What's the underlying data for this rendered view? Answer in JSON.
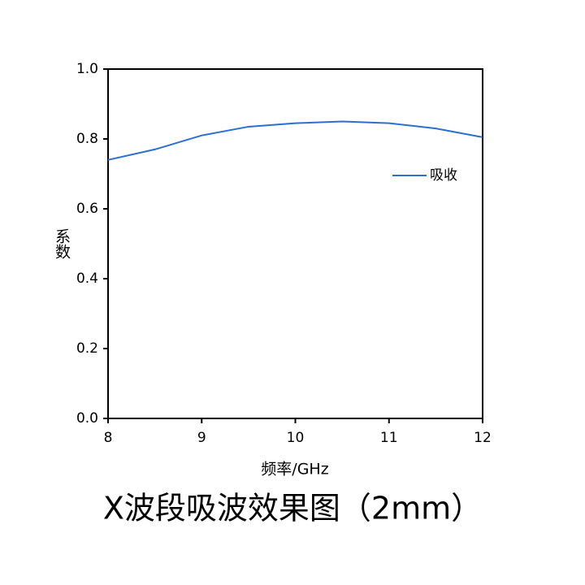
{
  "chart_data": {
    "type": "line",
    "title": "X波段吸波效果图（2mm）",
    "x_label": "频率/GHz",
    "y_label": "系数",
    "x": [
      8,
      8.5,
      9,
      9.5,
      10,
      10.5,
      11,
      11.5,
      12
    ],
    "series": [
      {
        "name": "吸收",
        "color": "#2a6fd1",
        "values": [
          0.74,
          0.77,
          0.81,
          0.835,
          0.845,
          0.85,
          0.845,
          0.83,
          0.805
        ]
      }
    ],
    "xlim": [
      8,
      12
    ],
    "xticks": [
      8,
      9,
      10,
      11,
      12
    ],
    "ylim": [
      0,
      1
    ],
    "yticks": [
      {
        "value": 0,
        "label": "0.0"
      },
      0.2,
      0.4,
      0.6,
      0.8,
      {
        "value": 1,
        "label": "1.0"
      }
    ],
    "legend": "upper right"
  }
}
